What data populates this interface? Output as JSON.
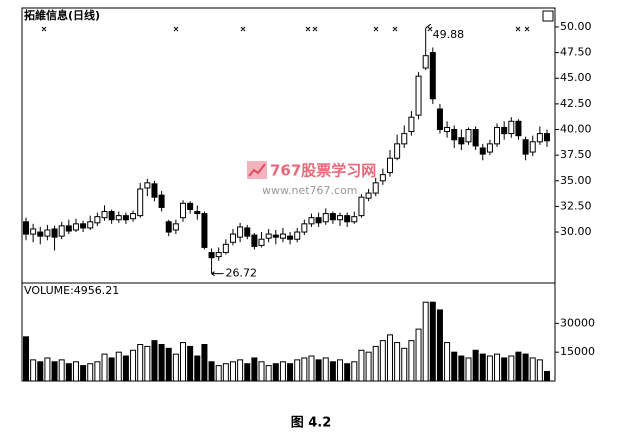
{
  "chart_data": [
    {
      "type": "candlestick",
      "title": "拓維信息(日线)",
      "up_color": "#ffffff",
      "down_color": "#000000",
      "open": [
        31.0,
        29.8,
        30.0,
        29.6,
        30.3,
        29.6,
        30.6,
        30.2,
        30.8,
        30.4,
        30.9,
        31.4,
        32.0,
        31.2,
        31.6,
        31.3,
        31.6,
        34.3,
        34.7,
        33.6,
        31.0,
        30.2,
        31.4,
        32.8,
        32.0,
        31.8,
        28.0,
        27.6,
        28.0,
        29.0,
        29.5,
        30.4,
        29.7,
        28.7,
        29.4,
        29.7,
        29.4,
        29.6,
        29.3,
        30.0,
        30.8,
        31.4,
        31.0,
        31.8,
        31.2,
        31.6,
        31.0,
        31.6,
        33.3,
        33.8,
        35.0,
        35.8,
        37.2,
        38.6,
        39.8,
        41.4,
        46.0,
        47.5,
        42.0,
        39.8,
        40.0,
        39.2,
        38.8,
        40.0,
        38.2,
        37.8,
        38.6,
        40.2,
        39.6,
        40.8,
        39.0,
        37.8,
        38.8,
        39.6
      ],
      "high": [
        31.4,
        30.8,
        30.5,
        30.7,
        30.6,
        31.0,
        31.2,
        31.3,
        31.1,
        31.6,
        31.9,
        32.6,
        32.2,
        32.0,
        31.9,
        32.1,
        34.8,
        35.2,
        35.0,
        34.0,
        31.2,
        31.2,
        33.1,
        33.0,
        32.6,
        32.0,
        28.4,
        28.5,
        29.3,
        30.3,
        30.9,
        30.7,
        29.9,
        30.0,
        30.3,
        30.2,
        30.4,
        30.0,
        30.4,
        31.2,
        31.8,
        31.9,
        32.3,
        32.0,
        31.9,
        31.9,
        32.0,
        33.7,
        34.2,
        35.3,
        36.2,
        38.0,
        39.5,
        40.4,
        41.8,
        45.6,
        49.88,
        48.0,
        42.5,
        40.8,
        40.4,
        40.0,
        40.2,
        40.3,
        38.6,
        39.0,
        40.6,
        40.8,
        41.2,
        41.0,
        39.3,
        39.4,
        40.3,
        40.0
      ],
      "low": [
        29.2,
        29.0,
        28.8,
        29.2,
        28.2,
        29.3,
        29.8,
        30.0,
        30.0,
        30.2,
        30.6,
        31.1,
        30.8,
        30.9,
        30.8,
        31.0,
        31.4,
        33.5,
        33.0,
        32.0,
        29.6,
        29.8,
        31.0,
        31.8,
        31.2,
        28.3,
        26.72,
        27.2,
        27.8,
        28.7,
        29.0,
        29.3,
        28.3,
        28.5,
        29.0,
        28.8,
        29.0,
        28.8,
        29.0,
        29.7,
        30.5,
        30.5,
        30.7,
        30.8,
        30.6,
        30.5,
        30.8,
        31.4,
        33.0,
        33.5,
        34.6,
        35.4,
        37.0,
        38.2,
        39.4,
        41.0,
        45.8,
        42.5,
        39.6,
        39.2,
        38.2,
        38.0,
        38.5,
        38.0,
        37.0,
        37.5,
        38.3,
        39.0,
        39.2,
        39.0,
        37.0,
        37.4,
        38.5,
        38.3
      ],
      "close": [
        29.8,
        30.3,
        29.6,
        30.2,
        29.5,
        30.6,
        30.1,
        30.8,
        30.4,
        31.0,
        31.5,
        32.0,
        31.2,
        31.6,
        31.2,
        31.8,
        34.2,
        34.8,
        33.4,
        32.4,
        30.0,
        30.8,
        32.8,
        32.2,
        31.8,
        28.5,
        27.5,
        28.0,
        28.8,
        29.8,
        30.5,
        29.6,
        28.6,
        29.3,
        29.8,
        29.5,
        29.8,
        29.3,
        30.0,
        30.8,
        31.4,
        30.9,
        31.8,
        31.2,
        31.6,
        31.0,
        31.5,
        33.4,
        33.8,
        34.8,
        35.6,
        37.2,
        38.6,
        39.6,
        41.2,
        45.2,
        47.2,
        43.0,
        40.0,
        40.2,
        39.0,
        38.6,
        40.0,
        38.4,
        37.6,
        38.6,
        40.2,
        39.6,
        40.8,
        39.4,
        37.6,
        38.8,
        39.6,
        38.9
      ],
      "ylim": [
        25.03,
        51.85
      ],
      "yticks": [
        {
          "value": 50,
          "label": "50.00"
        },
        {
          "value": 47.5,
          "label": "47.50"
        },
        {
          "value": 45,
          "label": "45.00"
        },
        {
          "value": 42.5,
          "label": "42.50"
        },
        {
          "value": 40,
          "label": "40.00"
        },
        {
          "value": 37.5,
          "label": "37.50"
        },
        {
          "value": 35,
          "label": "35.00"
        },
        {
          "value": 32.5,
          "label": "32.50"
        },
        {
          "value": 30,
          "label": "30.00"
        }
      ],
      "annotations": [
        {
          "value": 49.88,
          "label": "49.88"
        },
        {
          "value": 26.72,
          "label": "26.72"
        }
      ]
    },
    {
      "type": "bar",
      "title": "VOLUME:4956.21",
      "values": [
        23000,
        11000,
        10000,
        12000,
        10000,
        11000,
        9000,
        10000,
        8000,
        9000,
        10000,
        14000,
        12000,
        15000,
        13000,
        16000,
        19000,
        18000,
        21000,
        19000,
        17000,
        14000,
        20000,
        18000,
        13000,
        19000,
        10000,
        8000,
        9000,
        10000,
        11000,
        9000,
        12000,
        10000,
        8000,
        9000,
        10000,
        9000,
        11000,
        12000,
        13000,
        11000,
        12000,
        10000,
        11000,
        9000,
        10000,
        16000,
        15000,
        18000,
        21000,
        24000,
        20000,
        17000,
        21000,
        27000,
        41000,
        41000,
        37000,
        20000,
        15000,
        13000,
        12000,
        16000,
        14000,
        13000,
        14000,
        12000,
        13000,
        15000,
        14000,
        12000,
        11000,
        4956.21
      ],
      "ylim": [
        0,
        51000
      ],
      "yticks": [
        30000,
        15000
      ]
    }
  ],
  "watermark": {
    "name": "767股票学习网",
    "url": "www.net767.com"
  },
  "caption": "图 4.2"
}
